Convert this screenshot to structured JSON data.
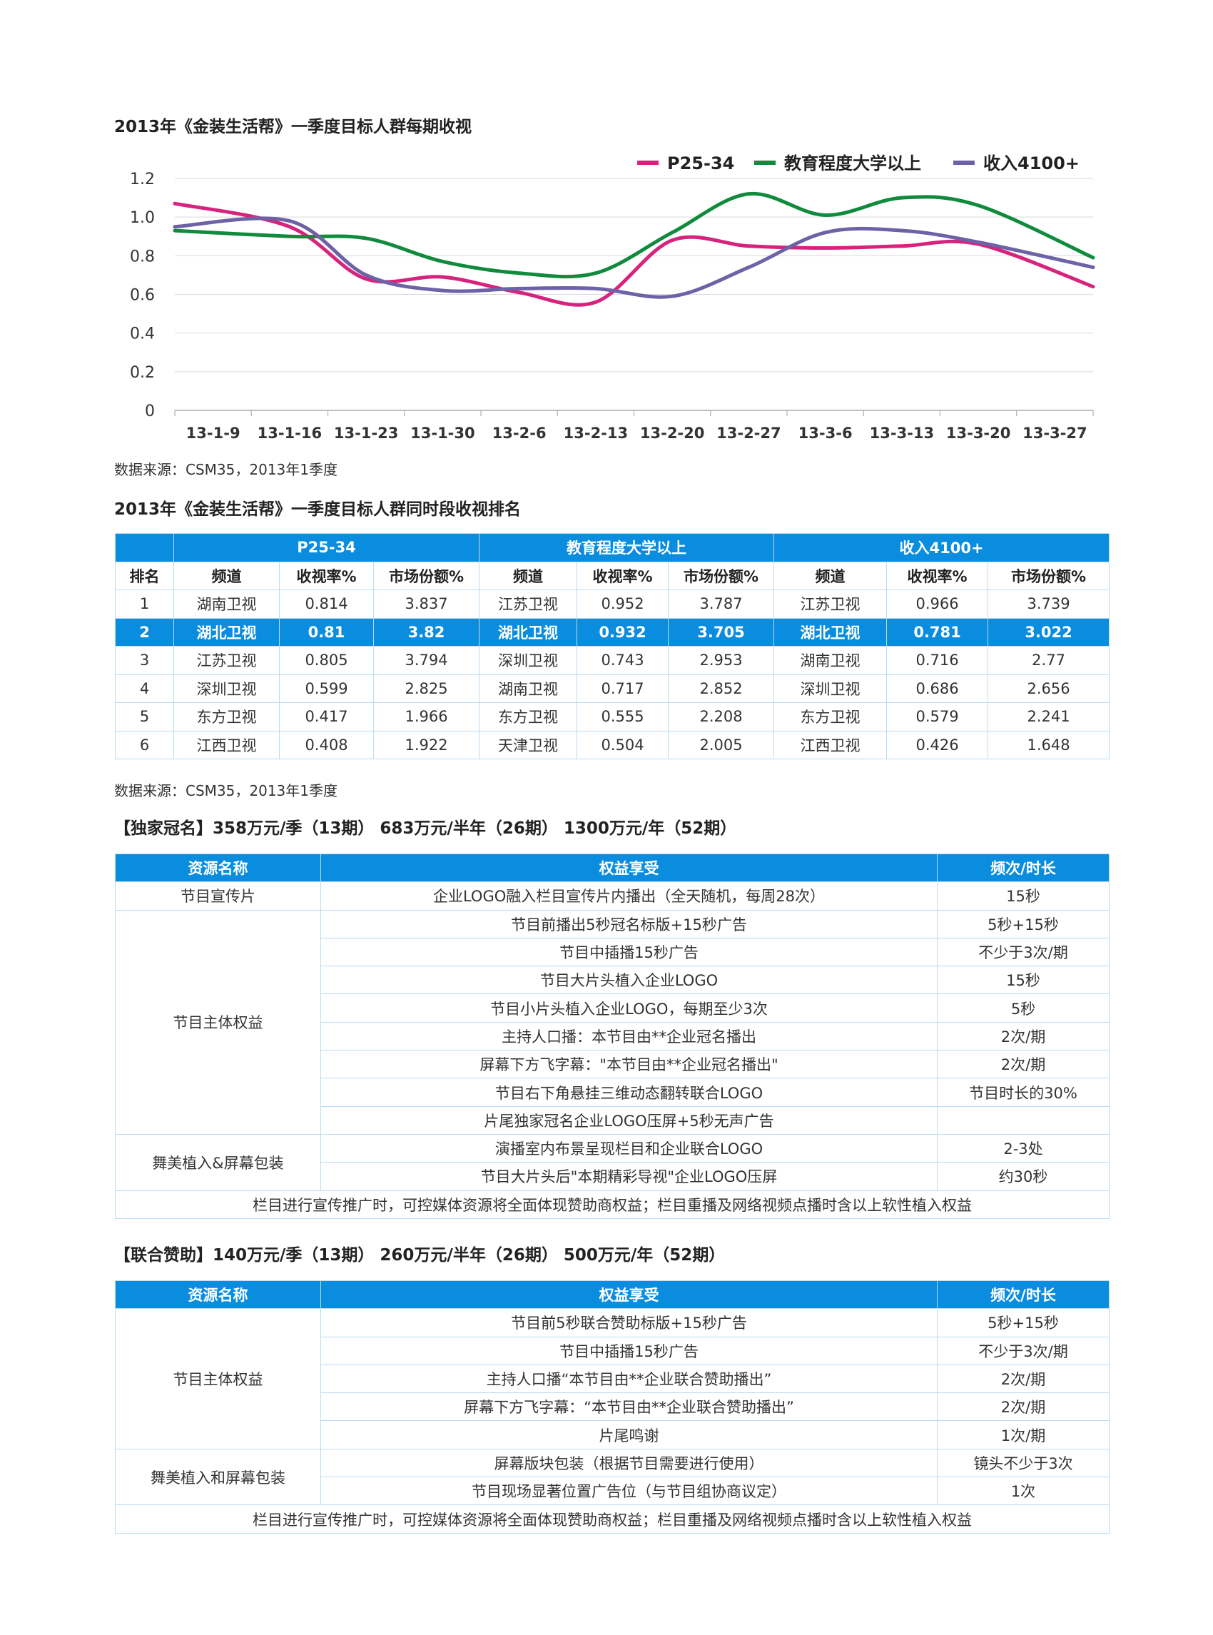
{
  "chart_title": "2013年《金装生活帮》一季度目标人群每期收视",
  "chart_data": {
    "type": "line",
    "title": "2013年《金装生活帮》一季度目标人群每期收视",
    "categories": [
      "13-1-9",
      "13-1-16",
      "13-1-23",
      "13-1-30",
      "13-2-6",
      "13-2-13",
      "13-2-20",
      "13-2-27",
      "13-3-6",
      "13-3-13",
      "13-3-20",
      "13-3-27"
    ],
    "y_ticks": [
      "0",
      "0.2",
      "0.4",
      "0.6",
      "0.8",
      "1.0",
      "1.2"
    ],
    "ylim": [
      0,
      1.2
    ],
    "grid": true,
    "legend_position": "top-right",
    "series": [
      {
        "name": "P25-34",
        "color": "#d6247e",
        "values": [
          1.07,
          0.95,
          0.68,
          0.69,
          0.61,
          0.56,
          0.88,
          0.85,
          0.84,
          0.85,
          0.86,
          0.64
        ]
      },
      {
        "name": "教育程度大学以上",
        "color": "#108a3c",
        "values": [
          0.93,
          0.9,
          0.89,
          0.77,
          0.71,
          0.71,
          0.92,
          1.12,
          1.01,
          1.1,
          1.06,
          0.79
        ]
      },
      {
        "name": "收入4100+",
        "color": "#6d62a5",
        "values": [
          0.95,
          0.98,
          0.7,
          0.62,
          0.63,
          0.63,
          0.59,
          0.74,
          0.92,
          0.93,
          0.87,
          0.74
        ]
      }
    ]
  },
  "source_1": "数据来源：CSM35，2013年1季度",
  "rank_title": "2013年《金装生活帮》一季度目标人群同时段收视排名",
  "rank_table": {
    "groups": [
      "P25-34",
      "教育程度大学以上",
      "收入4100+"
    ],
    "headers": [
      "排名",
      "频道",
      "收视率%",
      "市场份额%",
      "频道",
      "收视率%",
      "市场份额%",
      "频道",
      "收视率%",
      "市场份额%"
    ],
    "rows": [
      [
        "1",
        "湖南卫视",
        "0.814",
        "3.837",
        "江苏卫视",
        "0.952",
        "3.787",
        "江苏卫视",
        "0.966",
        "3.739"
      ],
      [
        "2",
        "湖北卫视",
        "0.81",
        "3.82",
        "湖北卫视",
        "0.932",
        "3.705",
        "湖北卫视",
        "0.781",
        "3.022"
      ],
      [
        "3",
        "江苏卫视",
        "0.805",
        "3.794",
        "深圳卫视",
        "0.743",
        "2.953",
        "湖南卫视",
        "0.716",
        "2.77"
      ],
      [
        "4",
        "深圳卫视",
        "0.599",
        "2.825",
        "湖南卫视",
        "0.717",
        "2.852",
        "深圳卫视",
        "0.686",
        "2.656"
      ],
      [
        "5",
        "东方卫视",
        "0.417",
        "1.966",
        "东方卫视",
        "0.555",
        "2.208",
        "东方卫视",
        "0.579",
        "2.241"
      ],
      [
        "6",
        "江西卫视",
        "0.408",
        "1.922",
        "天津卫视",
        "0.504",
        "2.005",
        "江西卫视",
        "0.426",
        "1.648"
      ]
    ]
  },
  "source_2": "数据来源：CSM35，2013年1季度",
  "exclusive": {
    "title": "【独家冠名】358万元/季（13期） 683万元/半年（26期） 1300万元/年（52期）",
    "headers": [
      "资源名称",
      "权益享受",
      "频次/时长"
    ],
    "groups": [
      {
        "name": "节目宣传片",
        "rows": [
          [
            "企业LOGO融入栏目宣传片内播出（全天随机，每周28次）",
            "15秒"
          ]
        ]
      },
      {
        "name": "节目主体权益",
        "rows": [
          [
            "节目前播出5秒冠名标版+15秒广告",
            "5秒+15秒"
          ],
          [
            "节目中插播15秒广告",
            "不少于3次/期"
          ],
          [
            "节目大片头植入企业LOGO",
            "15秒"
          ],
          [
            "节目小片头植入企业LOGO，每期至少3次",
            "5秒"
          ],
          [
            "主持人口播：本节目由**企业冠名播出",
            "2次/期"
          ],
          [
            "屏幕下方飞字幕：\"本节目由**企业冠名播出\"",
            "2次/期"
          ],
          [
            "节目右下角悬挂三维动态翻转联合LOGO",
            "节目时长的30%"
          ],
          [
            "片尾独家冠名企业LOGO压屏+5秒无声广告",
            ""
          ]
        ]
      },
      {
        "name": "舞美植入&屏幕包装",
        "rows": [
          [
            "演播室内布景呈现栏目和企业联合LOGO",
            "2-3处"
          ],
          [
            "节目大片头后\"本期精彩导视\"企业LOGO压屏",
            "约30秒"
          ]
        ]
      }
    ],
    "footer": "栏目进行宣传推广时，可控媒体资源将全面体现赞助商权益；栏目重播及网络视频点播时含以上软性植入权益"
  },
  "joint": {
    "title": "【联合赞助】140万元/季（13期） 260万元/半年（26期） 500万元/年（52期）",
    "headers": [
      "资源名称",
      "权益享受",
      "频次/时长"
    ],
    "groups": [
      {
        "name": "节目主体权益",
        "rows": [
          [
            "节目前5秒联合赞助标版+15秒广告",
            "5秒+15秒"
          ],
          [
            "节目中插播15秒广告",
            "不少于3次/期"
          ],
          [
            "主持人口播“本节目由**企业联合赞助播出”",
            "2次/期"
          ],
          [
            "屏幕下方飞字幕：“本节目由**企业联合赞助播出”",
            "2次/期"
          ],
          [
            "片尾鸣谢",
            "1次/期"
          ]
        ]
      },
      {
        "name": "舞美植入和屏幕包装",
        "rows": [
          [
            "屏幕版块包装（根据节目需要进行使用）",
            "镜头不少于3次"
          ],
          [
            "节目现场显著位置广告位（与节目组协商议定）",
            "1次"
          ]
        ]
      }
    ],
    "footer": "栏目进行宣传推广时，可控媒体资源将全面体现赞助商权益；栏目重播及网络视频点播时含以上软性植入权益"
  }
}
